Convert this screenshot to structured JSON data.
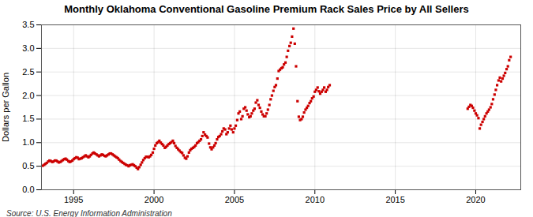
{
  "chart_data": {
    "type": "scatter",
    "title": "Monthly Oklahoma Conventional Gasoline Premium Rack Sales Price by All Sellers",
    "ylabel": "Dollars per Gallon",
    "annotation": "Source: U.S. Energy Information Administration",
    "color": "#cc0000",
    "marker": "square",
    "grid": true,
    "xlim": [
      1993.0,
      2022.8
    ],
    "ylim": [
      0.0,
      3.5
    ],
    "xticks": [
      1995,
      2000,
      2005,
      2010,
      2015,
      2020
    ],
    "yticks": [
      {
        "value": 0.0,
        "label": "0.0"
      },
      0.5,
      {
        "value": 1.0,
        "label": "1.0"
      },
      1.5,
      {
        "value": 2.0,
        "label": "2.0"
      },
      2.5,
      {
        "value": 3.0,
        "label": "3.0"
      },
      3.5
    ],
    "x": [
      1993.08,
      1993.17,
      1993.25,
      1993.33,
      1993.42,
      1993.5,
      1993.58,
      1993.67,
      1993.75,
      1993.83,
      1993.92,
      1994.0,
      1994.08,
      1994.17,
      1994.25,
      1994.33,
      1994.42,
      1994.5,
      1994.58,
      1994.67,
      1994.75,
      1994.83,
      1994.92,
      1995.0,
      1995.08,
      1995.17,
      1995.25,
      1995.33,
      1995.42,
      1995.5,
      1995.58,
      1995.67,
      1995.75,
      1995.83,
      1995.92,
      1996.0,
      1996.08,
      1996.17,
      1996.25,
      1996.33,
      1996.42,
      1996.5,
      1996.58,
      1996.67,
      1996.75,
      1996.83,
      1996.92,
      1997.0,
      1997.08,
      1997.17,
      1997.25,
      1997.33,
      1997.42,
      1997.5,
      1997.58,
      1997.67,
      1997.75,
      1997.83,
      1997.92,
      1998.0,
      1998.08,
      1998.17,
      1998.25,
      1998.33,
      1998.42,
      1998.5,
      1998.58,
      1998.67,
      1998.75,
      1998.83,
      1998.92,
      1999.0,
      1999.08,
      1999.17,
      1999.25,
      1999.33,
      1999.42,
      1999.5,
      1999.58,
      1999.67,
      1999.75,
      1999.83,
      1999.92,
      2000.0,
      2000.08,
      2000.17,
      2000.25,
      2000.33,
      2000.42,
      2000.5,
      2000.58,
      2000.67,
      2000.75,
      2000.83,
      2000.92,
      2001.0,
      2001.08,
      2001.17,
      2001.25,
      2001.33,
      2001.42,
      2001.5,
      2001.58,
      2001.67,
      2001.75,
      2001.83,
      2001.92,
      2002.0,
      2002.08,
      2002.17,
      2002.25,
      2002.33,
      2002.42,
      2002.5,
      2002.58,
      2002.67,
      2002.75,
      2002.83,
      2002.92,
      2003.0,
      2003.08,
      2003.17,
      2003.25,
      2003.33,
      2003.42,
      2003.5,
      2003.58,
      2003.67,
      2003.75,
      2003.83,
      2003.92,
      2004.0,
      2004.08,
      2004.17,
      2004.25,
      2004.33,
      2004.42,
      2004.5,
      2004.58,
      2004.67,
      2004.75,
      2004.83,
      2004.92,
      2005.0,
      2005.08,
      2005.17,
      2005.25,
      2005.33,
      2005.42,
      2005.5,
      2005.58,
      2005.67,
      2005.75,
      2005.83,
      2005.92,
      2006.0,
      2006.08,
      2006.17,
      2006.25,
      2006.33,
      2006.42,
      2006.5,
      2006.58,
      2006.67,
      2006.75,
      2006.83,
      2006.92,
      2007.0,
      2007.08,
      2007.17,
      2007.25,
      2007.33,
      2007.42,
      2007.5,
      2007.58,
      2007.67,
      2007.75,
      2007.83,
      2007.92,
      2008.0,
      2008.08,
      2008.17,
      2008.25,
      2008.33,
      2008.42,
      2008.5,
      2008.58,
      2008.67,
      2008.75,
      2008.83,
      2008.92,
      2009.0,
      2009.08,
      2009.17,
      2009.25,
      2009.33,
      2009.42,
      2009.5,
      2009.58,
      2009.67,
      2009.75,
      2009.83,
      2009.92,
      2010.0,
      2010.08,
      2010.17,
      2010.25,
      2010.33,
      2010.42,
      2010.5,
      2010.58,
      2010.67,
      2010.75,
      2010.83,
      2010.92,
      2019.5,
      2019.58,
      2019.67,
      2019.75,
      2019.83,
      2019.92,
      2020.0,
      2020.08,
      2020.17,
      2020.25,
      2020.33,
      2020.42,
      2020.5,
      2020.58,
      2020.67,
      2020.75,
      2020.83,
      2020.92,
      2021.0,
      2021.08,
      2021.17,
      2021.25,
      2021.33,
      2021.42,
      2021.5,
      2021.58,
      2021.67,
      2021.75,
      2021.83,
      2021.92,
      2022.0,
      2022.08,
      2022.17
    ],
    "values": [
      0.51,
      0.53,
      0.55,
      0.57,
      0.6,
      0.62,
      0.61,
      0.59,
      0.6,
      0.62,
      0.62,
      0.6,
      0.58,
      0.59,
      0.61,
      0.63,
      0.65,
      0.66,
      0.64,
      0.61,
      0.59,
      0.6,
      0.62,
      0.65,
      0.67,
      0.69,
      0.68,
      0.65,
      0.66,
      0.67,
      0.69,
      0.71,
      0.73,
      0.71,
      0.69,
      0.71,
      0.74,
      0.77,
      0.79,
      0.77,
      0.75,
      0.73,
      0.71,
      0.73,
      0.75,
      0.74,
      0.72,
      0.71,
      0.73,
      0.75,
      0.77,
      0.77,
      0.75,
      0.73,
      0.71,
      0.69,
      0.67,
      0.64,
      0.61,
      0.59,
      0.57,
      0.55,
      0.53,
      0.52,
      0.5,
      0.52,
      0.53,
      0.54,
      0.52,
      0.5,
      0.47,
      0.44,
      0.48,
      0.53,
      0.58,
      0.63,
      0.67,
      0.7,
      0.7,
      0.69,
      0.71,
      0.74,
      0.79,
      0.87,
      0.94,
      0.99,
      1.01,
      1.04,
      1.0,
      0.97,
      0.94,
      0.89,
      0.91,
      0.94,
      0.97,
      0.99,
      1.01,
      1.04,
      0.99,
      0.93,
      0.89,
      0.86,
      0.83,
      0.8,
      0.78,
      0.73,
      0.68,
      0.66,
      0.71,
      0.79,
      0.84,
      0.87,
      0.89,
      0.91,
      0.94,
      0.99,
      1.01,
      1.04,
      1.07,
      1.14,
      1.22,
      1.17,
      1.14,
      1.11,
      0.98,
      0.9,
      0.86,
      0.9,
      0.94,
      0.99,
      1.07,
      1.12,
      1.14,
      1.18,
      1.24,
      1.3,
      1.28,
      1.18,
      1.22,
      1.3,
      1.36,
      1.28,
      1.22,
      1.3,
      1.36,
      1.48,
      1.62,
      1.66,
      1.5,
      1.56,
      1.72,
      1.75,
      1.68,
      1.6,
      1.54,
      1.56,
      1.62,
      1.68,
      1.72,
      1.85,
      1.9,
      1.8,
      1.74,
      1.66,
      1.6,
      1.56,
      1.56,
      1.62,
      1.7,
      1.8,
      1.92,
      2.0,
      2.1,
      2.18,
      2.22,
      2.36,
      2.52,
      2.55,
      2.58,
      2.6,
      2.66,
      2.7,
      2.82,
      2.95,
      3.05,
      3.12,
      3.25,
      3.42,
      3.1,
      2.62,
      1.88,
      1.55,
      1.48,
      1.5,
      1.55,
      1.64,
      1.7,
      1.74,
      1.78,
      1.84,
      1.88,
      1.94,
      1.98,
      2.08,
      2.12,
      2.17,
      2.09,
      2.04,
      2.08,
      2.12,
      2.17,
      2.08,
      2.12,
      2.18,
      2.22,
      1.72,
      1.76,
      1.8,
      1.78,
      1.74,
      1.68,
      1.62,
      1.58,
      1.52,
      1.3,
      1.38,
      1.44,
      1.5,
      1.56,
      1.62,
      1.66,
      1.7,
      1.75,
      1.82,
      1.92,
      2.02,
      2.12,
      2.22,
      2.32,
      2.38,
      2.3,
      2.36,
      2.42,
      2.48,
      2.56,
      2.62,
      2.75,
      2.82
    ]
  }
}
